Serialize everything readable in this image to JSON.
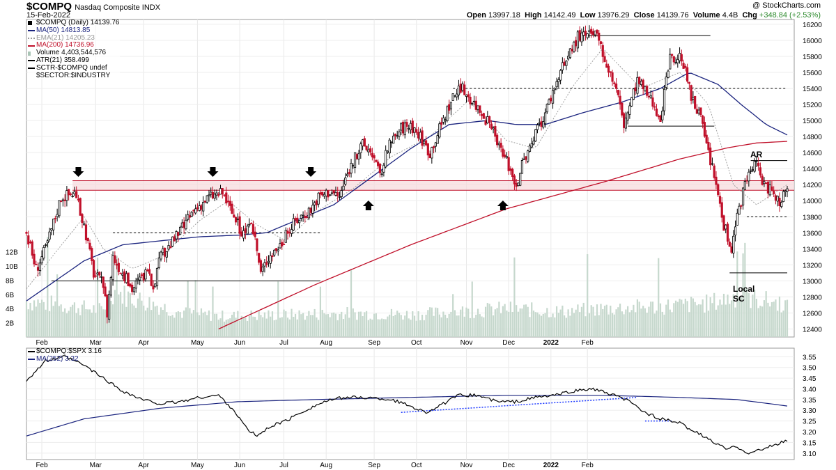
{
  "header": {
    "symbol": "$COMPQ",
    "name": "Nasdaq Composite INDX",
    "date": "15-Feb-2022",
    "watermark": "@ StockCharts.com",
    "open_label": "Open",
    "open": "13997.18",
    "high_label": "High",
    "high": "14142.49",
    "low_label": "Low",
    "low": "13976.29",
    "close_label": "Close",
    "close": "14139.76",
    "volume_label": "Volume",
    "volume": "4.4B",
    "chg_label": "Chg",
    "chg": "+348.84 (+2.53%)",
    "chg_color": "#2e8b2e"
  },
  "legend_main": [
    {
      "text": "$COMPQ (Daily) 14139.76",
      "color": "#000000",
      "kind": "candle"
    },
    {
      "text": "MA(50) 14813.85",
      "color": "#1a237e",
      "kind": "line"
    },
    {
      "text": "EMA(21) 14205.23",
      "color": "#999999",
      "kind": "dot"
    },
    {
      "text": "MA(200) 14736.96",
      "color": "#c0102a",
      "kind": "line"
    },
    {
      "text": "Volume 4,403,544,576",
      "color": "#a9c4b5",
      "kind": "bar"
    },
    {
      "text": "ATR(21) 358.499",
      "color": "#000000",
      "kind": "line"
    },
    {
      "text": "SCTR-$COMPQ undef",
      "color": "#000000",
      "kind": "line"
    },
    {
      "text": "$SECTOR:$INDUSTRY",
      "color": "#000000",
      "kind": "none"
    }
  ],
  "legend_lower": [
    {
      "text": "$COMPQ:$SPX 3.16",
      "color": "#000000"
    },
    {
      "text": "MA(252) 3.32",
      "color": "#1a237e"
    }
  ],
  "annotations": {
    "ar": "AR",
    "local_sc": [
      "Local",
      "SC"
    ]
  },
  "chart_data": [
    {
      "type": "candlestick",
      "title": "$COMPQ Nasdaq Composite INDX",
      "x_ticks": [
        "Feb",
        "Mar",
        "Apr",
        "May",
        "Jun",
        "Jul",
        "Aug",
        "Sep",
        "Oct",
        "Nov",
        "Dec",
        "2022",
        "Feb"
      ],
      "y_ticks": [
        12400,
        12600,
        12800,
        13000,
        13200,
        13400,
        13600,
        13800,
        14000,
        14200,
        14400,
        14600,
        14800,
        15000,
        15200,
        15400,
        15600,
        15800,
        16000,
        16200
      ],
      "ylim": [
        12300,
        16260
      ],
      "volume_ticks": [
        "2B",
        "4B",
        "6B",
        "8B",
        "10B",
        "12B"
      ],
      "volume_tick_values": [
        2,
        4,
        6,
        8,
        10,
        12
      ],
      "volume_max": 21,
      "close_path": [
        [
          0,
          13600
        ],
        [
          5,
          13150
        ],
        [
          10,
          13400
        ],
        [
          18,
          14050
        ],
        [
          25,
          14100
        ],
        [
          30,
          13700
        ],
        [
          35,
          13100
        ],
        [
          40,
          12950
        ],
        [
          42,
          12600
        ],
        [
          45,
          13300
        ],
        [
          50,
          13100
        ],
        [
          55,
          12900
        ],
        [
          62,
          13100
        ],
        [
          66,
          12950
        ],
        [
          70,
          13300
        ],
        [
          78,
          13550
        ],
        [
          88,
          13900
        ],
        [
          95,
          14050
        ],
        [
          102,
          14100
        ],
        [
          108,
          13800
        ],
        [
          112,
          13600
        ],
        [
          118,
          13650
        ],
        [
          122,
          13100
        ],
        [
          126,
          13300
        ],
        [
          132,
          13450
        ],
        [
          140,
          13750
        ],
        [
          148,
          13900
        ],
        [
          152,
          14050
        ],
        [
          158,
          14120
        ],
        [
          163,
          14050
        ],
        [
          168,
          14400
        ],
        [
          175,
          14700
        ],
        [
          180,
          14600
        ],
        [
          184,
          14300
        ],
        [
          188,
          14650
        ],
        [
          195,
          14900
        ],
        [
          200,
          14950
        ],
        [
          205,
          14800
        ],
        [
          210,
          14600
        ],
        [
          215,
          14900
        ],
        [
          222,
          15300
        ],
        [
          227,
          15400
        ],
        [
          232,
          15250
        ],
        [
          237,
          15100
        ],
        [
          242,
          14900
        ],
        [
          246,
          14650
        ],
        [
          250,
          14500
        ],
        [
          255,
          14200
        ],
        [
          258,
          14450
        ],
        [
          263,
          14700
        ],
        [
          270,
          15100
        ],
        [
          276,
          15500
        ],
        [
          282,
          15800
        ],
        [
          287,
          16050
        ],
        [
          292,
          16050
        ],
        [
          296,
          16080
        ],
        [
          302,
          15700
        ],
        [
          307,
          15400
        ],
        [
          311,
          14950
        ],
        [
          318,
          15500
        ],
        [
          324,
          15300
        ],
        [
          330,
          15050
        ],
        [
          335,
          15750
        ],
        [
          341,
          15800
        ],
        [
          346,
          15300
        ],
        [
          351,
          15000
        ],
        [
          355,
          14600
        ],
        [
          359,
          14200
        ],
        [
          363,
          13700
        ],
        [
          367,
          13400
        ],
        [
          371,
          13900
        ],
        [
          375,
          14300
        ],
        [
          380,
          14450
        ],
        [
          384,
          14200
        ],
        [
          388,
          14100
        ],
        [
          392,
          14000
        ],
        [
          396,
          14200
        ]
      ],
      "ma50_path": [
        [
          0,
          12750
        ],
        [
          15,
          13000
        ],
        [
          30,
          13250
        ],
        [
          50,
          13450
        ],
        [
          70,
          13500
        ],
        [
          90,
          13550
        ],
        [
          110,
          13570
        ],
        [
          125,
          13600
        ],
        [
          140,
          13750
        ],
        [
          160,
          13950
        ],
        [
          180,
          14300
        ],
        [
          200,
          14650
        ],
        [
          220,
          14950
        ],
        [
          240,
          15000
        ],
        [
          255,
          14950
        ],
        [
          270,
          14950
        ],
        [
          290,
          15100
        ],
        [
          310,
          15230
        ],
        [
          330,
          15400
        ],
        [
          345,
          15600
        ],
        [
          360,
          15450
        ],
        [
          372,
          15200
        ],
        [
          385,
          14950
        ],
        [
          396,
          14820
        ]
      ],
      "ma200_path": [
        [
          100,
          12400
        ],
        [
          150,
          12950
        ],
        [
          200,
          13450
        ],
        [
          250,
          13900
        ],
        [
          300,
          14230
        ],
        [
          340,
          14520
        ],
        [
          365,
          14660
        ],
        [
          380,
          14720
        ],
        [
          396,
          14740
        ]
      ],
      "ema21_path": [
        [
          0,
          12900
        ],
        [
          15,
          13350
        ],
        [
          30,
          13800
        ],
        [
          40,
          13400
        ],
        [
          55,
          13150
        ],
        [
          70,
          13300
        ],
        [
          90,
          13750
        ],
        [
          105,
          14000
        ],
        [
          120,
          13700
        ],
        [
          135,
          13500
        ],
        [
          150,
          13850
        ],
        [
          170,
          14150
        ],
        [
          190,
          14550
        ],
        [
          210,
          14800
        ],
        [
          230,
          15250
        ],
        [
          250,
          14750
        ],
        [
          265,
          14650
        ],
        [
          285,
          15450
        ],
        [
          300,
          15900
        ],
        [
          320,
          15400
        ],
        [
          340,
          15600
        ],
        [
          355,
          15200
        ],
        [
          368,
          14200
        ],
        [
          380,
          13950
        ],
        [
          396,
          14200
        ]
      ],
      "volume_path": [
        [
          0,
          4.8
        ],
        [
          40,
          3.6
        ],
        [
          45,
          6.1
        ],
        [
          80,
          3.3
        ],
        [
          100,
          2.8
        ],
        [
          140,
          3.0
        ],
        [
          170,
          3.2
        ],
        [
          200,
          3.0
        ],
        [
          250,
          3.8
        ],
        [
          280,
          3.4
        ],
        [
          300,
          3.8
        ],
        [
          330,
          4.1
        ],
        [
          355,
          4.5
        ],
        [
          370,
          5.5
        ],
        [
          396,
          4.4
        ]
      ],
      "resistance_zone": [
        14130,
        14250
      ],
      "annotation_levels": [
        {
          "y": 16060,
          "x0": 288,
          "x1": 356
        },
        {
          "y": 15400,
          "x0": 222,
          "x1": 396
        },
        {
          "y": 14930,
          "x0": 313,
          "x1": 358
        },
        {
          "y": 14500,
          "x0": 377,
          "x1": 396
        },
        {
          "y": 13600,
          "x0": 45,
          "x1": 153
        },
        {
          "y": 13000,
          "x0": 13,
          "x1": 153
        },
        {
          "y": 13800,
          "x0": 375,
          "x1": 396
        },
        {
          "y": 13100,
          "x0": 366,
          "x1": 396
        }
      ],
      "down_arrows_x": [
        27,
        97,
        148
      ],
      "up_arrows_x": [
        178,
        248
      ]
    },
    {
      "type": "line",
      "title": "$COMPQ:$SPX",
      "y_ticks": [
        3.1,
        3.15,
        3.2,
        3.25,
        3.3,
        3.35,
        3.4,
        3.45,
        3.5,
        3.55
      ],
      "ylim": [
        3.07,
        3.59
      ],
      "ratio_path": [
        [
          0,
          3.44
        ],
        [
          10,
          3.53
        ],
        [
          20,
          3.55
        ],
        [
          30,
          3.51
        ],
        [
          40,
          3.45
        ],
        [
          50,
          3.39
        ],
        [
          60,
          3.35
        ],
        [
          70,
          3.33
        ],
        [
          80,
          3.34
        ],
        [
          90,
          3.36
        ],
        [
          100,
          3.37
        ],
        [
          108,
          3.3
        ],
        [
          115,
          3.21
        ],
        [
          120,
          3.18
        ],
        [
          128,
          3.23
        ],
        [
          135,
          3.25
        ],
        [
          145,
          3.3
        ],
        [
          155,
          3.34
        ],
        [
          165,
          3.36
        ],
        [
          175,
          3.36
        ],
        [
          190,
          3.35
        ],
        [
          200,
          3.32
        ],
        [
          208,
          3.29
        ],
        [
          215,
          3.32
        ],
        [
          225,
          3.37
        ],
        [
          235,
          3.37
        ],
        [
          245,
          3.34
        ],
        [
          255,
          3.34
        ],
        [
          265,
          3.36
        ],
        [
          275,
          3.37
        ],
        [
          285,
          3.39
        ],
        [
          295,
          3.4
        ],
        [
          302,
          3.38
        ],
        [
          312,
          3.35
        ],
        [
          322,
          3.29
        ],
        [
          330,
          3.26
        ],
        [
          340,
          3.24
        ],
        [
          348,
          3.2
        ],
        [
          356,
          3.16
        ],
        [
          364,
          3.12
        ],
        [
          370,
          3.13
        ],
        [
          376,
          3.1
        ],
        [
          384,
          3.12
        ],
        [
          390,
          3.14
        ],
        [
          396,
          3.16
        ]
      ],
      "ma252_path": [
        [
          0,
          3.18
        ],
        [
          30,
          3.26
        ],
        [
          70,
          3.31
        ],
        [
          110,
          3.34
        ],
        [
          150,
          3.35
        ],
        [
          200,
          3.36
        ],
        [
          250,
          3.37
        ],
        [
          300,
          3.37
        ],
        [
          340,
          3.36
        ],
        [
          370,
          3.35
        ],
        [
          396,
          3.32
        ]
      ],
      "trend_lines": [
        {
          "x0": 195,
          "y0": 3.29,
          "x1": 318,
          "y1": 3.36
        },
        {
          "x0": 322,
          "y0": 3.25,
          "x1": 336,
          "y1": 3.25
        }
      ]
    }
  ]
}
